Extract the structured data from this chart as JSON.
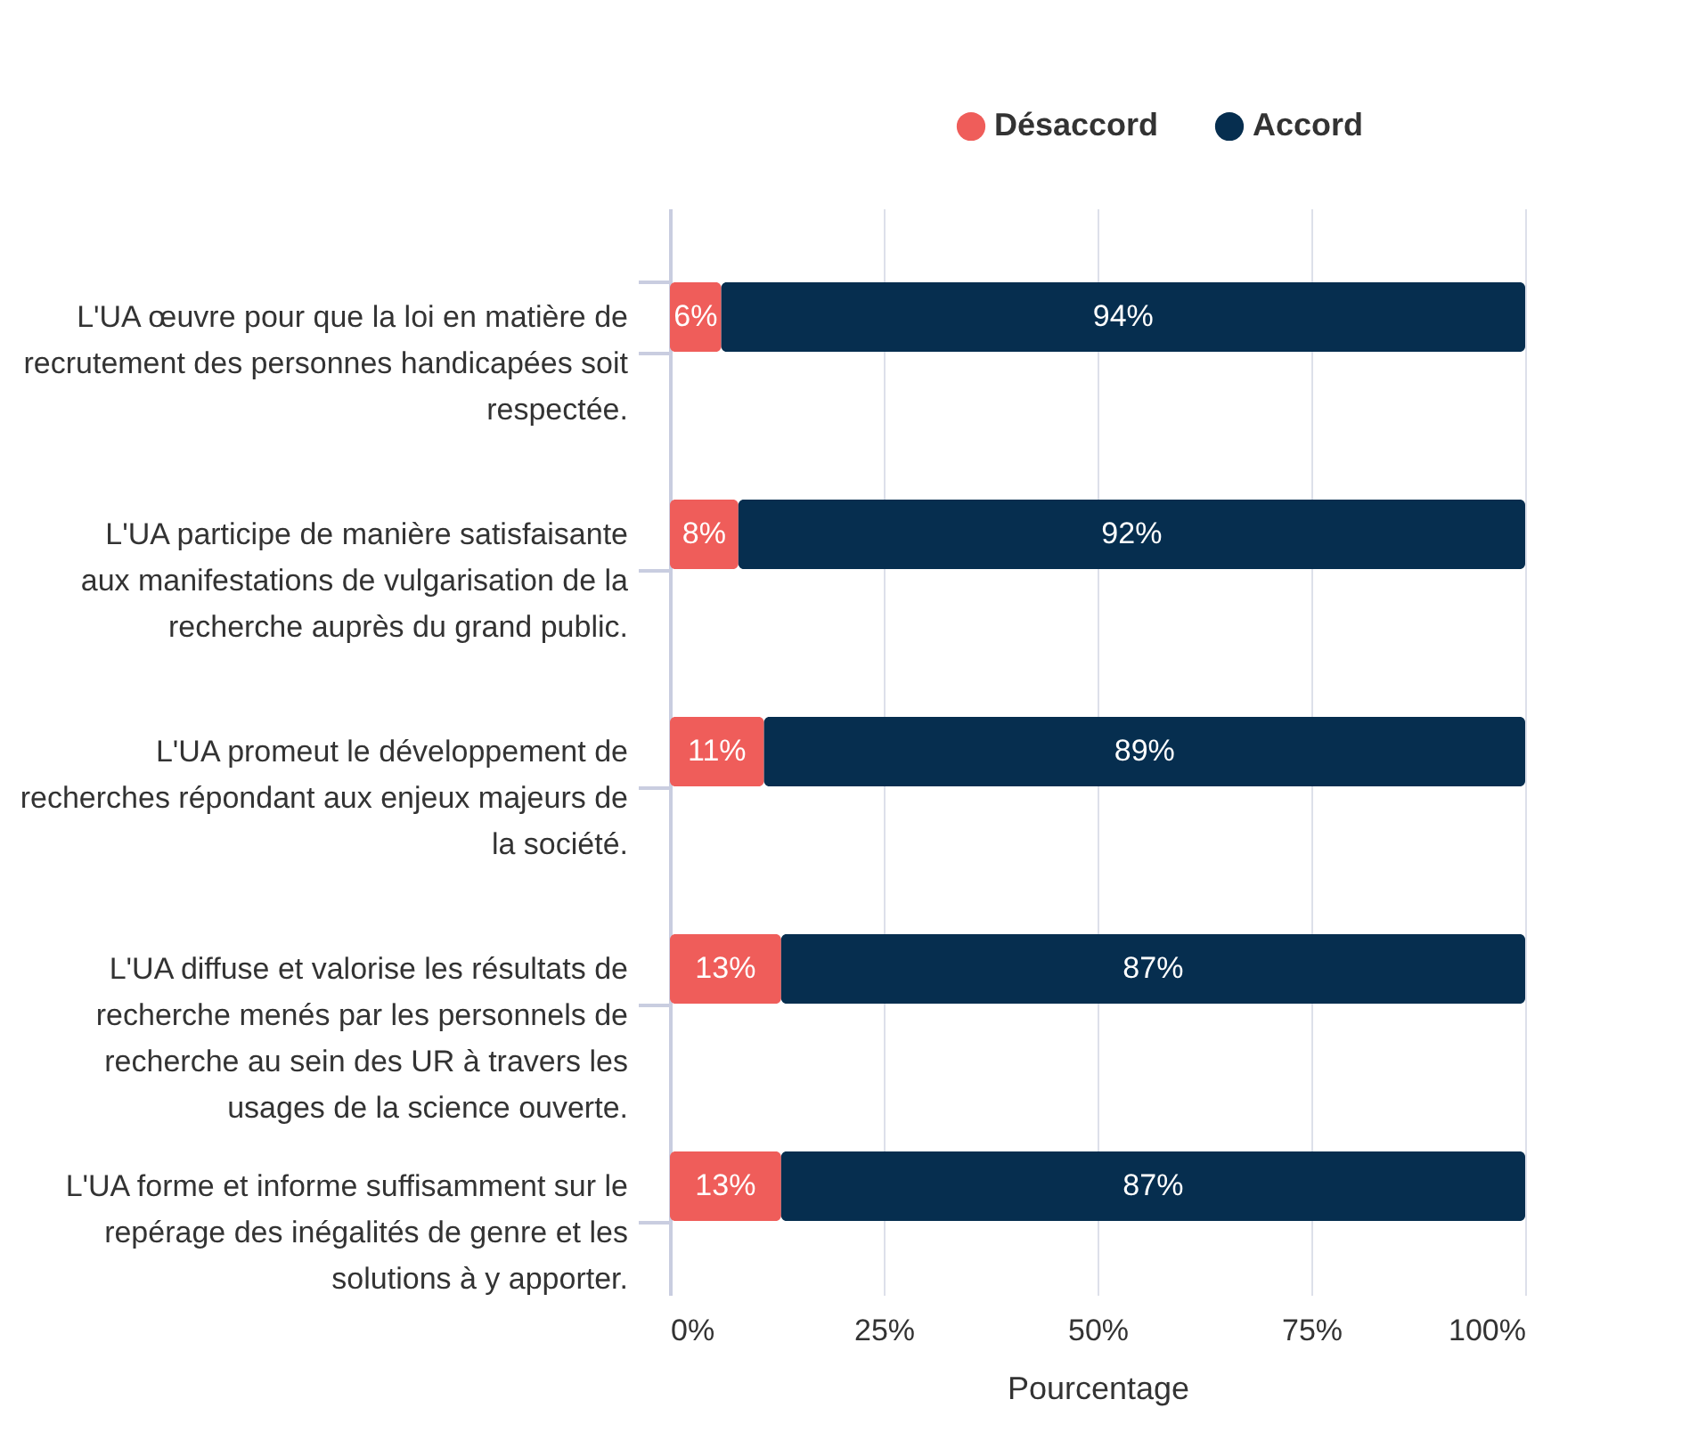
{
  "chart_data": {
    "type": "bar",
    "orientation": "horizontal",
    "stacked": true,
    "categories": [
      "L'UA œuvre pour que la loi en matière de recrutement des personnes handicapées soit respectée.",
      "L'UA participe de manière satisfaisante aux manifestations de vulgarisation de la recherche auprès du grand public.",
      "L'UA promeut le développement de recherches répondant aux enjeux majeurs de la société.",
      "L'UA diffuse et valorise les résultats de recherche menés par les personnels de recherche au sein des UR à travers les usages de la science ouverte.",
      "L'UA forme et informe suffisamment sur le repérage des inégalités de genre et les solutions à y apporter."
    ],
    "series": [
      {
        "name": "Désaccord",
        "color": "#ef5d5a",
        "values": [
          6,
          8,
          11,
          13,
          13
        ],
        "value_labels": [
          "6%",
          "8%",
          "11%",
          "13%",
          "13%"
        ]
      },
      {
        "name": "Accord",
        "color": "#062e4f",
        "values": [
          94,
          92,
          89,
          87,
          87
        ],
        "value_labels": [
          "94%",
          "92%",
          "89%",
          "87%",
          "87%"
        ]
      }
    ],
    "xlabel": "Pourcentage",
    "xlim": [
      0,
      100
    ],
    "xticks": [
      {
        "value": 0,
        "label": "0%"
      },
      {
        "value": 25,
        "label": "25%"
      },
      {
        "value": 50,
        "label": "50%"
      },
      {
        "value": 75,
        "label": "75%"
      },
      {
        "value": 100,
        "label": "100%"
      }
    ],
    "grid": "x",
    "legend": "top right"
  }
}
